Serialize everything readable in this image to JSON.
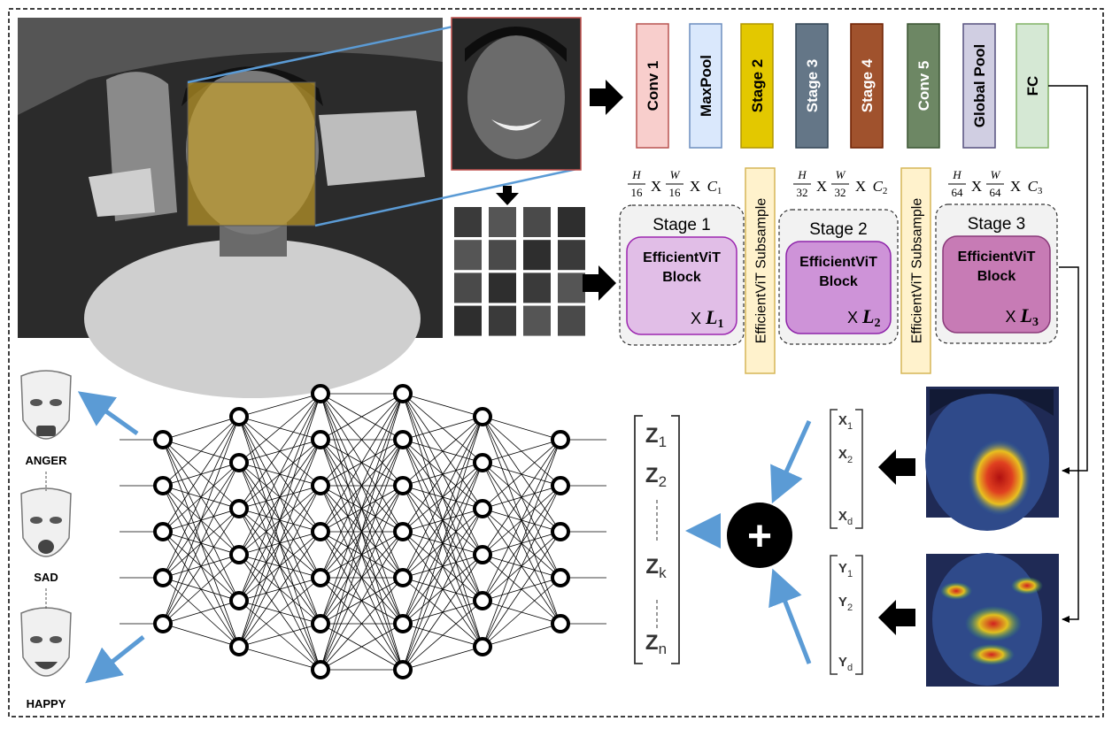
{
  "cnn": {
    "layers": [
      {
        "label": "Conv 1",
        "fill": "#f8cecc",
        "stroke": "#b85450",
        "text": "#000000"
      },
      {
        "label": "MaxPool",
        "fill": "#dae8fc",
        "stroke": "#6c8ebf",
        "text": "#000000"
      },
      {
        "label": "Stage 2",
        "fill": "#e3c800",
        "stroke": "#b09500",
        "text": "#000000"
      },
      {
        "label": "Stage 3",
        "fill": "#647687",
        "stroke": "#314354",
        "text": "#ffffff"
      },
      {
        "label": "Stage 4",
        "fill": "#a0522d",
        "stroke": "#6d1f00",
        "text": "#ffffff"
      },
      {
        "label": "Conv 5",
        "fill": "#6d8764",
        "stroke": "#3a5431",
        "text": "#ffffff"
      },
      {
        "label": "Global Pool",
        "fill": "#d0cee2",
        "stroke": "#56517e",
        "text": "#000000"
      },
      {
        "label": "FC",
        "fill": "#d5e8d4",
        "stroke": "#82b366",
        "text": "#000000"
      }
    ]
  },
  "vit": {
    "stages": [
      {
        "title": "Stage 1",
        "block_line1": "EfficientViT",
        "block_line2": "Block",
        "times": "X",
        "L_main": "L",
        "L_sub": "1",
        "dim_H": "H",
        "dim_Hden": "16",
        "dim_W": "W",
        "dim_Wden": "16",
        "dim_x": "X",
        "dim_C": "C",
        "dim_Csub": "1",
        "fill": "#e1bee7",
        "stroke": "#9c27b0"
      },
      {
        "title": "Stage 2",
        "block_line1": "EfficientViT",
        "block_line2": "Block",
        "times": "X",
        "L_main": "L",
        "L_sub": "2",
        "dim_H": "H",
        "dim_Hden": "32",
        "dim_W": "W",
        "dim_Wden": "32",
        "dim_x": "X",
        "dim_C": "C",
        "dim_Csub": "2",
        "fill": "#ce93d8",
        "stroke": "#8e24aa"
      },
      {
        "title": "Stage 3",
        "block_line1": "EfficientViT",
        "block_line2": "Block",
        "times": "X",
        "L_main": "L",
        "L_sub": "3",
        "dim_H": "H",
        "dim_Hden": "64",
        "dim_W": "W",
        "dim_Wden": "64",
        "dim_x": "X",
        "dim_C": "C",
        "dim_Csub": "3",
        "fill": "#c77bb5",
        "stroke": "#8a3a7a"
      }
    ],
    "subsample_label": "EfficientViT Subsample",
    "subsample_fill": "#fff2cc",
    "subsample_stroke": "#d6b656"
  },
  "vectors": {
    "x": {
      "main": "X",
      "subs": [
        "1",
        "2",
        "d"
      ]
    },
    "y": {
      "main": "Y",
      "subs": [
        "1",
        "2",
        "d"
      ]
    },
    "z": {
      "main": "Z",
      "subs": [
        "1",
        "2",
        "k",
        "n"
      ]
    }
  },
  "plus_symbol": "+",
  "emotions": [
    "ANGER",
    "SAD",
    "HAPPY"
  ],
  "colors": {
    "arrow_blue": "#5b9bd5",
    "face_box": "#c9a227"
  }
}
